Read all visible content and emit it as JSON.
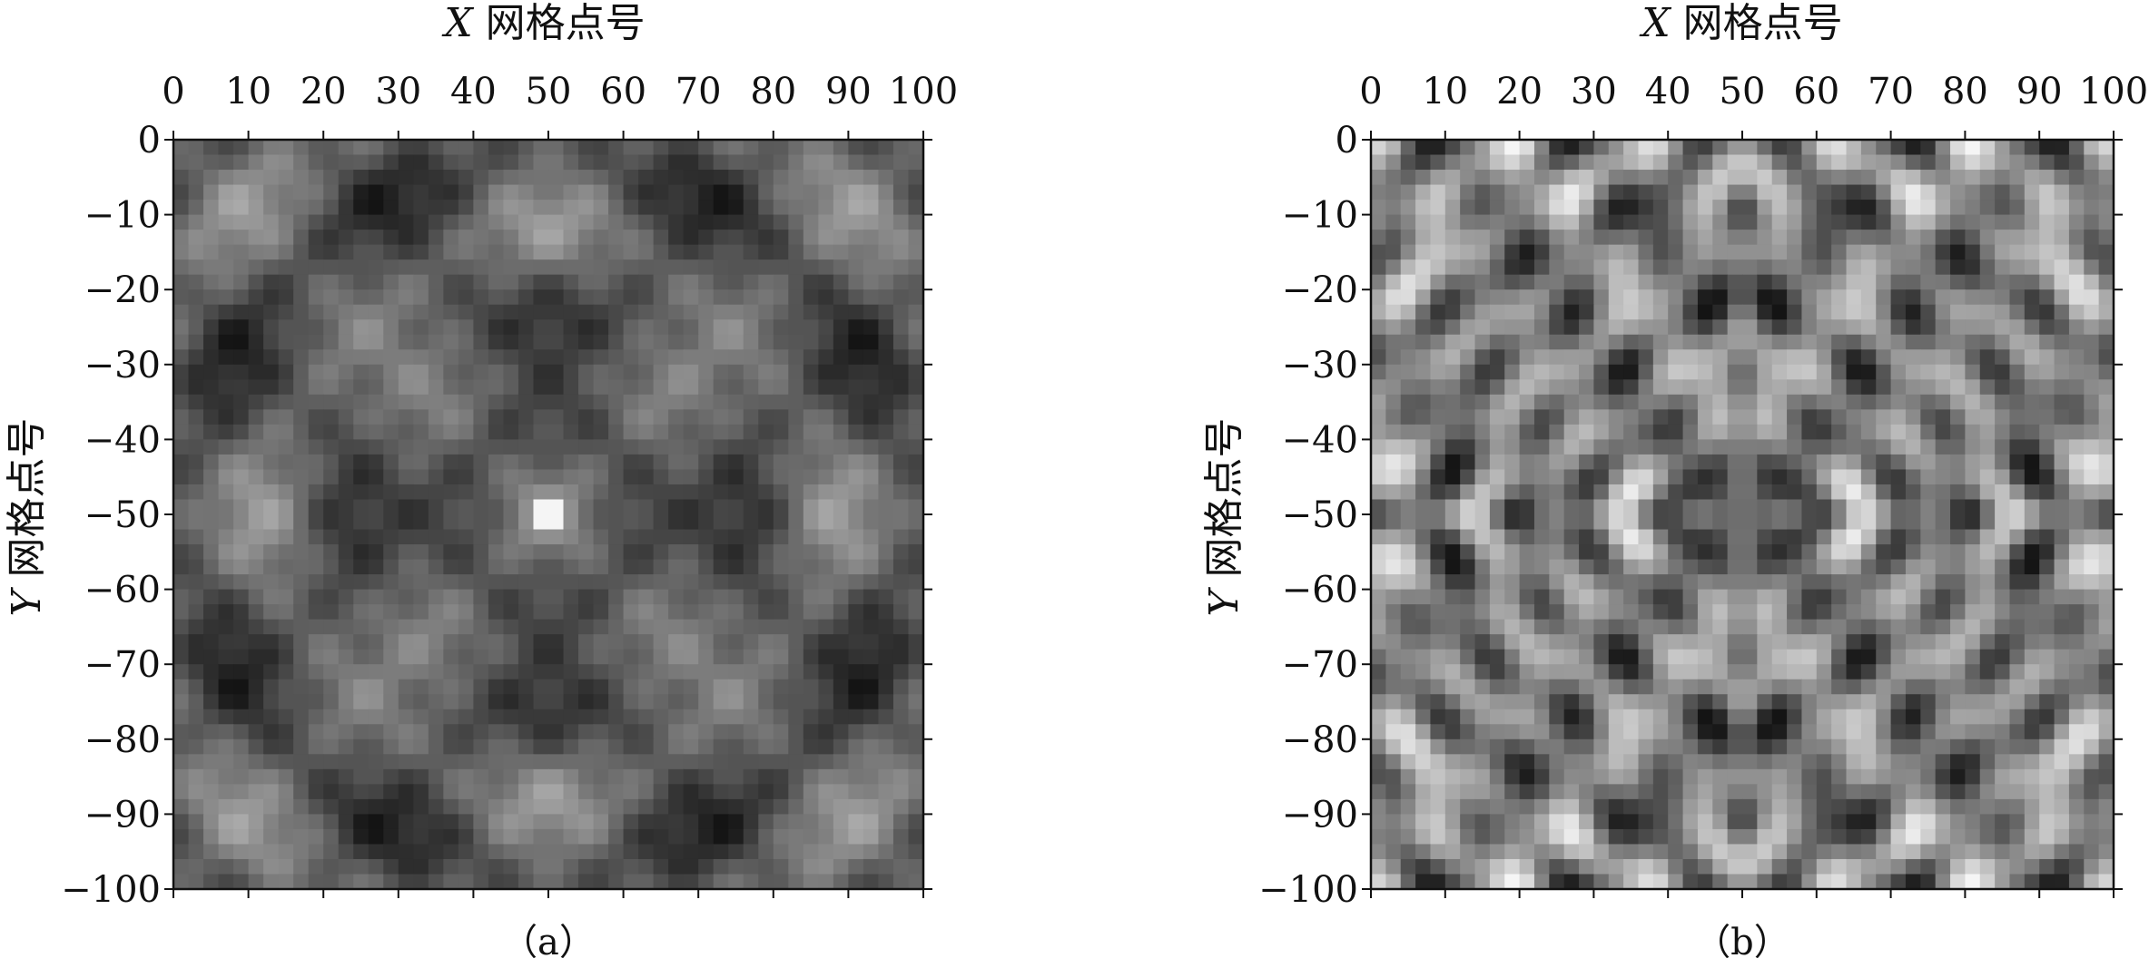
{
  "chart_data": [
    {
      "type": "heatmap",
      "panel_label": "（a）",
      "xlabel_var": "X",
      "xlabel_text": "网格点号",
      "ylabel_var": "Y",
      "ylabel_text": "网格点号",
      "x_axis_position": "top",
      "xlim": [
        0,
        100
      ],
      "ylim": [
        -100,
        0
      ],
      "x_ticks": [
        0,
        10,
        20,
        30,
        40,
        50,
        60,
        70,
        80,
        90,
        100
      ],
      "x_tick_labels": [
        "0",
        "10",
        "20",
        "30",
        "40",
        "50",
        "60",
        "70",
        "80",
        "90",
        "100"
      ],
      "y_ticks": [
        0,
        -10,
        -20,
        -30,
        -40,
        -50,
        -60,
        -70,
        -80,
        -90,
        -100
      ],
      "y_tick_labels": [
        "0",
        "−10",
        "−20",
        "−30",
        "−40",
        "−50",
        "−60",
        "−70",
        "−80",
        "−90",
        "−100"
      ],
      "colormap": "grayscale",
      "grid": false,
      "pattern": "symmetric diamond-shaped wave interference centered at grid point (50, -50), with brightest cell at the center"
    },
    {
      "type": "heatmap",
      "panel_label": "（b）",
      "xlabel_var": "X",
      "xlabel_text": "网格点号",
      "ylabel_var": "Y",
      "ylabel_text": "网格点号",
      "x_axis_position": "top",
      "xlim": [
        0,
        100
      ],
      "ylim": [
        -100,
        0
      ],
      "x_ticks": [
        0,
        10,
        20,
        30,
        40,
        50,
        60,
        70,
        80,
        90,
        100
      ],
      "x_tick_labels": [
        "0",
        "10",
        "20",
        "30",
        "40",
        "50",
        "60",
        "70",
        "80",
        "90",
        "100"
      ],
      "y_ticks": [
        0,
        -10,
        -20,
        -30,
        -40,
        -50,
        -60,
        -70,
        -80,
        -90,
        -100
      ],
      "y_tick_labels": [
        "0",
        "−10",
        "−20",
        "−30",
        "−40",
        "−50",
        "−60",
        "−70",
        "−80",
        "−90",
        "−100"
      ],
      "colormap": "grayscale",
      "grid": false,
      "pattern": "complex four-fold symmetric interference texture mirrored about x=50 and y=-50"
    }
  ],
  "colors": {
    "axis": "#111111",
    "dark": "#141414",
    "mid": "#7e7e7e",
    "light": "#f2f2f2"
  }
}
